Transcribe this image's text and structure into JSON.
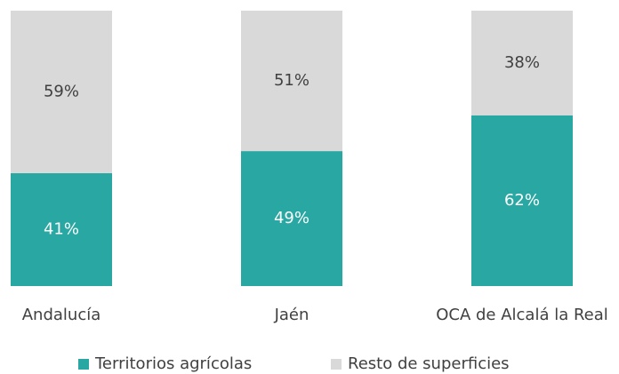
{
  "chart_data": {
    "type": "stacked_bar_100",
    "categories": [
      "Andalucía",
      "Jaén",
      "OCA de Alcalá la Real"
    ],
    "series": [
      {
        "name": "Territorios agrícolas",
        "color": "#29a7a2",
        "values": [
          41,
          49,
          62
        ],
        "value_labels": [
          "41%",
          "49%",
          "62%"
        ]
      },
      {
        "name": "Resto de superficies",
        "color": "#d9d9d9",
        "values": [
          59,
          51,
          38
        ],
        "value_labels": [
          "59%",
          "51%",
          "38%"
        ]
      }
    ],
    "legend": "bottom"
  }
}
